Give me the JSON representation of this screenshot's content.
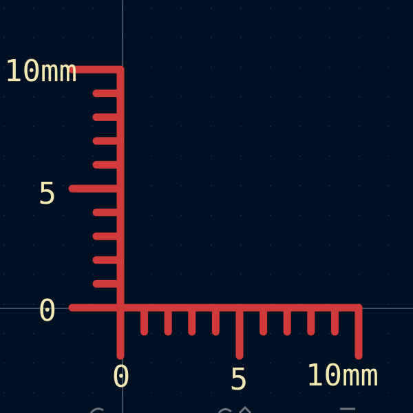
{
  "colors": {
    "background": "#001023",
    "ruler": "#d03a3a",
    "label": "#f2eab2",
    "grid_dot": "#2a3450",
    "crosshair": "#8a8f9a",
    "footer_text": "#6e7380"
  },
  "ruler": {
    "vertical": {
      "labels": [
        "0",
        "5",
        "10mm"
      ],
      "label_values": [
        0,
        5,
        10
      ]
    },
    "horizontal": {
      "labels": [
        "0",
        "5",
        "10mm"
      ],
      "label_values": [
        0,
        5,
        10
      ]
    },
    "range_mm": [
      0,
      10
    ]
  }
}
